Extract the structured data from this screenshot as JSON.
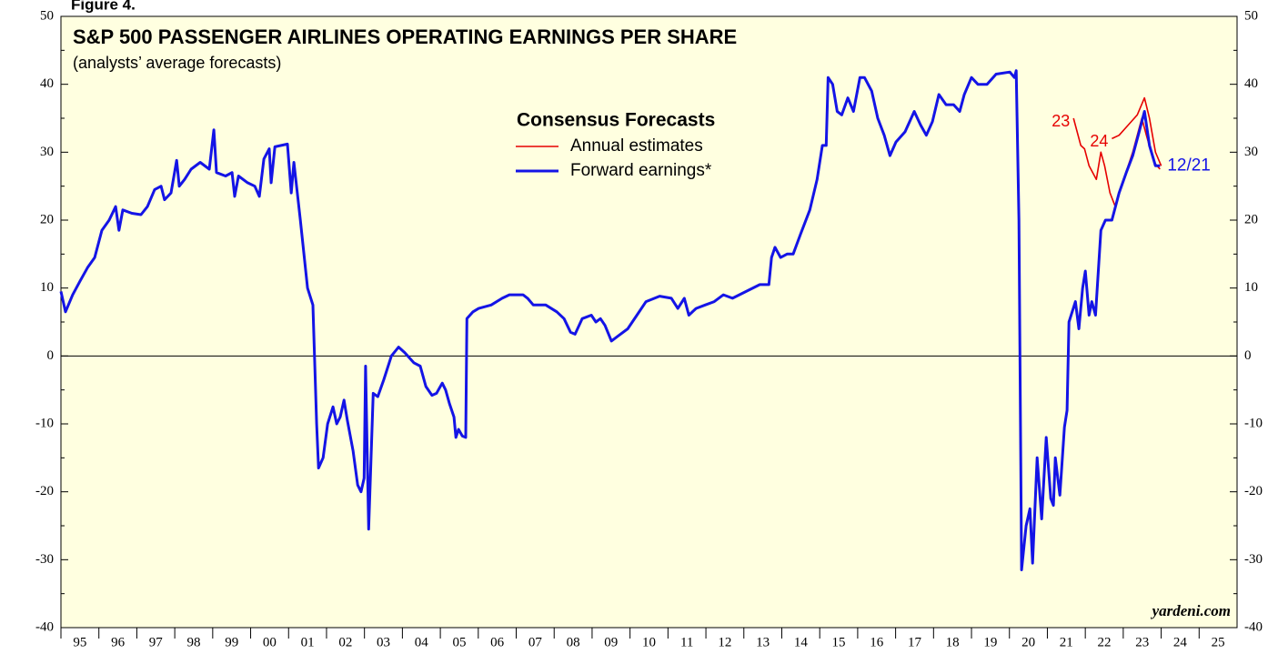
{
  "chart_data": {
    "type": "line",
    "figure_label": "Figure 4.",
    "title": "S&P 500 PASSENGER AIRLINES OPERATING EARNINGS PER SHARE",
    "subtitle": "(analysts’ average forecasts)",
    "legend_title": "Consensus Forecasts",
    "source": "yardeni.com",
    "end_label": "12/21",
    "xlim": [
      1995,
      2026
    ],
    "ylim": [
      -40,
      50
    ],
    "yticks": [
      -40,
      -30,
      -20,
      -10,
      0,
      10,
      20,
      30,
      40,
      50
    ],
    "xticks": [
      {
        "value": 1995.5,
        "label": "95"
      },
      {
        "value": 1996.5,
        "label": "96"
      },
      {
        "value": 1997.5,
        "label": "97"
      },
      {
        "value": 1998.5,
        "label": "98"
      },
      {
        "value": 1999.5,
        "label": "99"
      },
      {
        "value": 2000.5,
        "label": "00"
      },
      {
        "value": 2001.5,
        "label": "01"
      },
      {
        "value": 2002.5,
        "label": "02"
      },
      {
        "value": 2003.5,
        "label": "03"
      },
      {
        "value": 2004.5,
        "label": "04"
      },
      {
        "value": 2005.5,
        "label": "05"
      },
      {
        "value": 2006.5,
        "label": "06"
      },
      {
        "value": 2007.5,
        "label": "07"
      },
      {
        "value": 2008.5,
        "label": "08"
      },
      {
        "value": 2009.5,
        "label": "09"
      },
      {
        "value": 2010.5,
        "label": "10"
      },
      {
        "value": 2011.5,
        "label": "11"
      },
      {
        "value": 2012.5,
        "label": "12"
      },
      {
        "value": 2013.5,
        "label": "13"
      },
      {
        "value": 2014.5,
        "label": "14"
      },
      {
        "value": 2015.5,
        "label": "15"
      },
      {
        "value": 2016.5,
        "label": "16"
      },
      {
        "value": 2017.5,
        "label": "17"
      },
      {
        "value": 2018.5,
        "label": "18"
      },
      {
        "value": 2019.5,
        "label": "19"
      },
      {
        "value": 2020.5,
        "label": "20"
      },
      {
        "value": 2021.5,
        "label": "21"
      },
      {
        "value": 2022.5,
        "label": "22"
      },
      {
        "value": 2023.5,
        "label": "23"
      },
      {
        "value": 2024.5,
        "label": "24"
      },
      {
        "value": 2025.5,
        "label": "25"
      }
    ],
    "series": [
      {
        "name": "Annual estimates",
        "color": "#e60000",
        "segment_labels": [
          "23",
          "24"
        ],
        "x": [
          2021.69,
          2021.88,
          2021.98,
          2022.1,
          2022.29,
          2022.41,
          2022.51,
          2022.65,
          2022.79,
          2023.01,
          2023.25,
          2023.49,
          2023.61,
          2023.81,
          2023.97,
          null,
          2022.7,
          2022.89,
          2023.13,
          2023.37,
          2023.56,
          2023.69,
          2023.85,
          2024.0
        ],
        "values": [
          35,
          31,
          30.5,
          28,
          26,
          30,
          28,
          24,
          22,
          26,
          30,
          35,
          32.5,
          28.5,
          27.5,
          null,
          32,
          32.5,
          34,
          35.5,
          38,
          35,
          30,
          28
        ]
      },
      {
        "name": "Forward earnings*",
        "color": "#1414e6",
        "x": [
          1995.0,
          1995.12,
          1995.31,
          1995.5,
          1995.7,
          1995.89,
          1996.08,
          1996.27,
          1996.44,
          1996.53,
          1996.63,
          1996.87,
          1997.11,
          1997.28,
          1997.47,
          1997.64,
          1997.73,
          1997.9,
          1998.05,
          1998.12,
          1998.26,
          1998.43,
          1998.67,
          1998.91,
          1999.03,
          1999.1,
          1999.34,
          1999.51,
          1999.58,
          1999.68,
          1999.92,
          2000.11,
          2000.23,
          2000.35,
          2000.49,
          2000.54,
          2000.64,
          2000.97,
          2001.07,
          2001.14,
          2001.31,
          2001.5,
          2001.64,
          2001.74,
          2001.79,
          2001.91,
          2002.03,
          2002.17,
          2002.27,
          2002.36,
          2002.46,
          2002.55,
          2002.7,
          2002.82,
          2002.91,
          2002.99,
          2003.03,
          2003.11,
          2003.23,
          2003.35,
          2003.51,
          2003.71,
          2003.9,
          2004.06,
          2004.3,
          2004.47,
          2004.62,
          2004.78,
          2004.9,
          2005.05,
          2005.14,
          2005.24,
          2005.36,
          2005.41,
          2005.48,
          2005.58,
          2005.67,
          2005.7,
          2005.86,
          2006.01,
          2006.34,
          2006.63,
          2006.82,
          2007.18,
          2007.3,
          2007.45,
          2007.78,
          2008.07,
          2008.26,
          2008.43,
          2008.55,
          2008.74,
          2008.98,
          2009.1,
          2009.22,
          2009.34,
          2009.51,
          2009.7,
          2009.94,
          2010.18,
          2010.42,
          2010.78,
          2011.09,
          2011.26,
          2011.43,
          2011.55,
          2011.74,
          2011.98,
          2012.22,
          2012.46,
          2012.7,
          2013.06,
          2013.42,
          2013.66,
          2013.73,
          2013.82,
          2013.97,
          2014.14,
          2014.3,
          2014.5,
          2014.74,
          2014.93,
          2015.07,
          2015.17,
          2015.22,
          2015.34,
          2015.46,
          2015.58,
          2015.74,
          2015.89,
          2016.06,
          2016.18,
          2016.37,
          2016.53,
          2016.7,
          2016.85,
          2017.01,
          2017.25,
          2017.49,
          2017.66,
          2017.81,
          2017.97,
          2018.14,
          2018.33,
          2018.53,
          2018.69,
          2018.81,
          2019.0,
          2019.17,
          2019.41,
          2019.65,
          2020.01,
          2020.13,
          2020.18,
          2020.25,
          2020.32,
          2020.44,
          2020.54,
          2020.61,
          2020.73,
          2020.85,
          2020.97,
          2021.09,
          2021.16,
          2021.21,
          2021.33,
          2021.45,
          2021.52,
          2021.57,
          2021.74,
          2021.83,
          2021.93,
          2022.0,
          2022.1,
          2022.17,
          2022.27,
          2022.41,
          2022.53,
          2022.7,
          2022.89,
          2023.08,
          2023.25,
          2023.42,
          2023.56,
          2023.69,
          2023.85,
          2023.97
        ],
        "values": [
          9.5,
          6.5,
          9,
          11,
          13,
          14.5,
          18.5,
          20,
          22,
          18.5,
          21.5,
          21,
          20.8,
          22,
          24.5,
          25,
          23,
          24,
          28.8,
          25,
          26,
          27.5,
          28.5,
          27.5,
          33.3,
          27,
          26.5,
          27,
          23.5,
          26.5,
          25.5,
          25,
          23.5,
          29,
          30.5,
          25.5,
          30.8,
          31.2,
          24,
          28.5,
          20,
          10,
          7.5,
          -10,
          -16.5,
          -15,
          -10,
          -7.5,
          -10,
          -9,
          -6.5,
          -9.5,
          -14,
          -19,
          -20,
          -18,
          -1.5,
          -25.5,
          -5.5,
          -6,
          -3.5,
          0,
          1.3,
          0.5,
          -1,
          -1.5,
          -4.5,
          -5.8,
          -5.5,
          -4,
          -5,
          -7,
          -9,
          -12,
          -10.8,
          -11.8,
          -12,
          5.5,
          6.5,
          7,
          7.5,
          8.5,
          9,
          9,
          8.5,
          7.5,
          7.5,
          6.5,
          5.5,
          3.5,
          3.2,
          5.5,
          6,
          5,
          5.5,
          4.5,
          2.2,
          3,
          4,
          6,
          8,
          8.8,
          8.5,
          7,
          8.5,
          6,
          7,
          7.5,
          8,
          9,
          8.5,
          9.5,
          10.5,
          10.5,
          14.5,
          16,
          14.5,
          15,
          15,
          18,
          21.5,
          26,
          31,
          31,
          41,
          40,
          36,
          35.5,
          38,
          36,
          41,
          41,
          39,
          35,
          32.5,
          29.5,
          31.5,
          33,
          36,
          34,
          32.5,
          34.5,
          38.5,
          37,
          37,
          36,
          38.5,
          41,
          40,
          40,
          41.5,
          41.8,
          41,
          42,
          20,
          -31.5,
          -25,
          -22.5,
          -30.5,
          -15,
          -24,
          -12,
          -21,
          -22,
          -15,
          -20.5,
          -10.5,
          -8,
          5,
          8,
          4,
          10,
          12.5,
          6,
          8,
          6,
          18.5,
          20,
          20,
          24,
          27,
          29.5,
          33,
          36,
          31,
          28,
          28
        ]
      }
    ]
  }
}
